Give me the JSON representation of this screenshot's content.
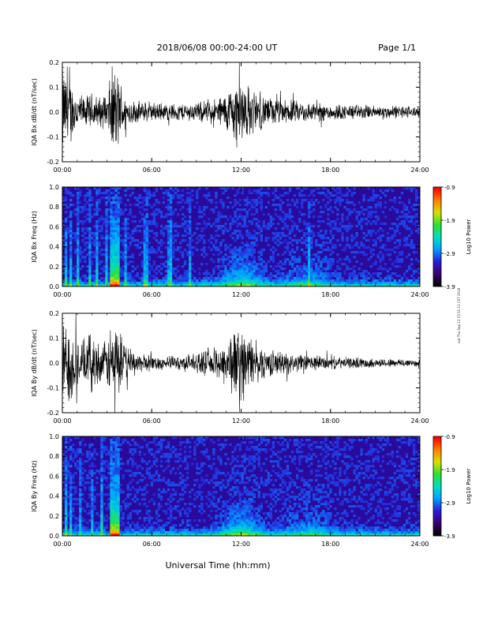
{
  "header": {
    "title": "2018/06/08  00:00-24:00 UT",
    "page": "Page 1/1"
  },
  "footer": {
    "xlabel": "Universal Time (hh:mm)"
  },
  "side_stamp": "nat Thu Sep 13 15:51:12 CST 2018",
  "colors": {
    "waveform": "#000000",
    "colorbar_stops": [
      "#000000",
      "#3a0070",
      "#2a1bd8",
      "#00a0ff",
      "#00e0c0",
      "#30e030",
      "#d8e000",
      "#ff8000",
      "#ff0000"
    ]
  },
  "chart_data": [
    {
      "type": "line",
      "title": "",
      "ylabel": "IQA Bx dB/dt (nT/sec)",
      "xlabel": "",
      "ylim": [
        -0.2,
        0.2
      ],
      "yticks": [
        "-0.2",
        "-0.1",
        "0.0",
        "0.1",
        "0.2"
      ],
      "xticks": [
        "00:00",
        "06:00",
        "12:00",
        "18:00",
        "24:00"
      ],
      "xlim_hours": [
        0,
        24
      ],
      "envelope": {
        "x_hours": [
          0,
          0.5,
          1,
          1.5,
          2,
          2.5,
          3,
          3.3,
          3.6,
          3.9,
          4.2,
          5,
          6,
          7,
          8,
          9,
          10,
          10.5,
          11,
          11.5,
          12,
          12.5,
          13,
          14,
          15,
          16,
          17,
          18,
          19,
          20,
          21,
          22,
          23,
          24
        ],
        "amplitude": [
          0.2,
          0.16,
          0.09,
          0.07,
          0.09,
          0.07,
          0.08,
          0.2,
          0.2,
          0.15,
          0.07,
          0.05,
          0.045,
          0.04,
          0.04,
          0.045,
          0.055,
          0.07,
          0.09,
          0.14,
          0.17,
          0.12,
          0.09,
          0.065,
          0.055,
          0.05,
          0.045,
          0.04,
          0.035,
          0.035,
          0.03,
          0.03,
          0.03,
          0.025
        ]
      }
    },
    {
      "type": "heatmap",
      "title": "",
      "ylabel": "IQA Bx Freq (Hz)",
      "ylim": [
        0.0,
        1.0
      ],
      "yticks": [
        "0.0",
        "0.2",
        "0.4",
        "0.6",
        "0.8",
        "1.0"
      ],
      "xticks": [
        "00:00",
        "06:00",
        "12:00",
        "18:00",
        "24:00"
      ],
      "colorbar": {
        "label": "Log10 Power",
        "range": [
          -3.9,
          -0.9
        ],
        "ticks": [
          "-0.9",
          "-1.9",
          "-2.9",
          "-3.9"
        ]
      },
      "bursts_hours": [
        0.2,
        0.5,
        1.1,
        1.8,
        2.3,
        2.9,
        3.45,
        3.55,
        4.3,
        5.6,
        7.2,
        8.6,
        16.5
      ]
    },
    {
      "type": "line",
      "title": "",
      "ylabel": "IQA By dB/dt (nT/sec)",
      "xlabel": "",
      "ylim": [
        -0.2,
        0.2
      ],
      "yticks": [
        "-0.2",
        "-0.1",
        "0.0",
        "0.1",
        "0.2"
      ],
      "xticks": [
        "00:00",
        "06:00",
        "12:00",
        "18:00",
        "24:00"
      ],
      "xlim_hours": [
        0,
        24
      ],
      "envelope": {
        "x_hours": [
          0,
          0.5,
          1,
          1.5,
          2,
          2.5,
          3,
          3.3,
          3.6,
          3.9,
          4.2,
          5,
          6,
          7,
          8,
          9,
          10,
          10.5,
          11,
          11.5,
          12,
          12.5,
          13,
          14,
          15,
          16,
          17,
          18,
          19,
          20,
          21,
          22,
          23,
          24
        ],
        "amplitude": [
          0.18,
          0.2,
          0.12,
          0.1,
          0.14,
          0.09,
          0.1,
          0.2,
          0.2,
          0.15,
          0.08,
          0.05,
          0.035,
          0.03,
          0.035,
          0.045,
          0.06,
          0.08,
          0.11,
          0.16,
          0.18,
          0.13,
          0.09,
          0.06,
          0.05,
          0.04,
          0.035,
          0.03,
          0.025,
          0.025,
          0.02,
          0.02,
          0.02,
          0.02
        ]
      }
    },
    {
      "type": "heatmap",
      "title": "",
      "ylabel": "IQA By Freq (Hz)",
      "ylim": [
        0.0,
        1.0
      ],
      "yticks": [
        "0.0",
        "0.2",
        "0.4",
        "0.6",
        "0.8",
        "1.0"
      ],
      "xticks": [
        "00:00",
        "06:00",
        "12:00",
        "18:00",
        "24:00"
      ],
      "colorbar": {
        "label": "Log10 Power",
        "range": [
          -3.9,
          -0.9
        ],
        "ticks": [
          "-0.9",
          "-1.9",
          "-2.9",
          "-3.9"
        ]
      },
      "bursts_hours": [
        0.3,
        0.6,
        1.2,
        2.0,
        2.6,
        3.5,
        3.6
      ]
    }
  ]
}
